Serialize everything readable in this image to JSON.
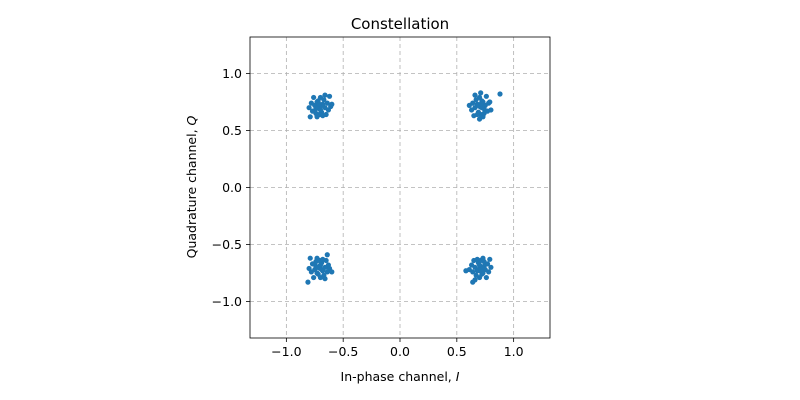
{
  "chart_data": {
    "type": "scatter",
    "title": "Constellation",
    "xlabel": "In-phase channel, I",
    "ylabel": "Quadrature channel, Q",
    "xlim": [
      -1.32,
      1.32
    ],
    "ylim": [
      -1.32,
      1.32
    ],
    "xticks": [
      -1.0,
      -0.5,
      0.0,
      0.5,
      1.0
    ],
    "yticks": [
      -1.0,
      -0.5,
      0.0,
      0.5,
      1.0
    ],
    "xtick_labels": [
      "−1.0",
      "−0.5",
      "0.0",
      "0.5",
      "1.0"
    ],
    "ytick_labels": [
      "−1.0",
      "−0.5",
      "0.0",
      "0.5",
      "1.0"
    ],
    "grid": true,
    "aspect": "equal",
    "color": "#1f77b4",
    "series": [
      {
        "points": [
          [
            -0.707,
            0.707
          ],
          [
            -0.74,
            0.69
          ],
          [
            -0.68,
            0.73
          ],
          [
            -0.72,
            0.76
          ],
          [
            -0.69,
            0.66
          ],
          [
            -0.75,
            0.72
          ],
          [
            -0.66,
            0.7
          ],
          [
            -0.71,
            0.64
          ],
          [
            -0.64,
            0.74
          ],
          [
            -0.77,
            0.67
          ],
          [
            -0.7,
            0.79
          ],
          [
            -0.63,
            0.68
          ],
          [
            -0.73,
            0.62
          ],
          [
            -0.67,
            0.77
          ],
          [
            -0.78,
            0.74
          ],
          [
            -0.61,
            0.71
          ],
          [
            -0.72,
            0.7
          ],
          [
            -0.69,
            0.72
          ],
          [
            -0.76,
            0.79
          ],
          [
            -0.65,
            0.64
          ],
          [
            -0.74,
            0.65
          ],
          [
            -0.62,
            0.8
          ],
          [
            -0.79,
            0.62
          ],
          [
            -0.7,
            0.68
          ],
          [
            -0.66,
            0.81
          ],
          [
            -0.6,
            0.73
          ],
          [
            -0.8,
            0.7
          ],
          [
            -0.73,
            0.75
          ],
          [
            -0.68,
            0.63
          ],
          [
            -0.71,
            0.73
          ],
          [
            0.707,
            0.707
          ],
          [
            0.74,
            0.69
          ],
          [
            0.68,
            0.73
          ],
          [
            0.72,
            0.76
          ],
          [
            0.69,
            0.66
          ],
          [
            0.75,
            0.72
          ],
          [
            0.66,
            0.7
          ],
          [
            0.71,
            0.64
          ],
          [
            0.64,
            0.74
          ],
          [
            0.77,
            0.67
          ],
          [
            0.7,
            0.79
          ],
          [
            0.63,
            0.68
          ],
          [
            0.73,
            0.62
          ],
          [
            0.67,
            0.77
          ],
          [
            0.78,
            0.74
          ],
          [
            0.61,
            0.72
          ],
          [
            0.72,
            0.7
          ],
          [
            0.69,
            0.72
          ],
          [
            0.76,
            0.8
          ],
          [
            0.65,
            0.63
          ],
          [
            0.74,
            0.65
          ],
          [
            0.71,
            0.83
          ],
          [
            0.8,
            0.68
          ],
          [
            0.7,
            0.6
          ],
          [
            0.66,
            0.81
          ],
          [
            0.79,
            0.75
          ],
          [
            0.88,
            0.82
          ],
          [
            0.73,
            0.75
          ],
          [
            0.68,
            0.64
          ],
          [
            0.71,
            0.73
          ],
          [
            -0.707,
            -0.707
          ],
          [
            -0.74,
            -0.69
          ],
          [
            -0.68,
            -0.73
          ],
          [
            -0.72,
            -0.76
          ],
          [
            -0.69,
            -0.66
          ],
          [
            -0.75,
            -0.72
          ],
          [
            -0.66,
            -0.7
          ],
          [
            -0.71,
            -0.64
          ],
          [
            -0.64,
            -0.74
          ],
          [
            -0.77,
            -0.67
          ],
          [
            -0.7,
            -0.79
          ],
          [
            -0.63,
            -0.68
          ],
          [
            -0.73,
            -0.62
          ],
          [
            -0.67,
            -0.77
          ],
          [
            -0.78,
            -0.74
          ],
          [
            -0.62,
            -0.71
          ],
          [
            -0.72,
            -0.7
          ],
          [
            -0.69,
            -0.72
          ],
          [
            -0.76,
            -0.79
          ],
          [
            -0.65,
            -0.64
          ],
          [
            -0.74,
            -0.65
          ],
          [
            -0.64,
            -0.59
          ],
          [
            -0.79,
            -0.62
          ],
          [
            -0.7,
            -0.68
          ],
          [
            -0.66,
            -0.8
          ],
          [
            -0.6,
            -0.74
          ],
          [
            -0.8,
            -0.71
          ],
          [
            -0.73,
            -0.75
          ],
          [
            -0.68,
            -0.63
          ],
          [
            -0.81,
            -0.83
          ],
          [
            0.707,
            -0.707
          ],
          [
            0.74,
            -0.69
          ],
          [
            0.68,
            -0.73
          ],
          [
            0.72,
            -0.76
          ],
          [
            0.69,
            -0.66
          ],
          [
            0.75,
            -0.72
          ],
          [
            0.66,
            -0.7
          ],
          [
            0.71,
            -0.64
          ],
          [
            0.64,
            -0.74
          ],
          [
            0.77,
            -0.67
          ],
          [
            0.7,
            -0.79
          ],
          [
            0.63,
            -0.68
          ],
          [
            0.73,
            -0.62
          ],
          [
            0.67,
            -0.77
          ],
          [
            0.78,
            -0.74
          ],
          [
            0.61,
            -0.72
          ],
          [
            0.72,
            -0.7
          ],
          [
            0.69,
            -0.72
          ],
          [
            0.76,
            -0.79
          ],
          [
            0.65,
            -0.64
          ],
          [
            0.74,
            -0.65
          ],
          [
            0.58,
            -0.73
          ],
          [
            0.79,
            -0.63
          ],
          [
            0.7,
            -0.68
          ],
          [
            0.66,
            -0.81
          ],
          [
            0.64,
            -0.83
          ],
          [
            0.8,
            -0.7
          ],
          [
            0.73,
            -0.75
          ],
          [
            0.68,
            -0.63
          ],
          [
            0.71,
            -0.73
          ]
        ]
      }
    ]
  }
}
